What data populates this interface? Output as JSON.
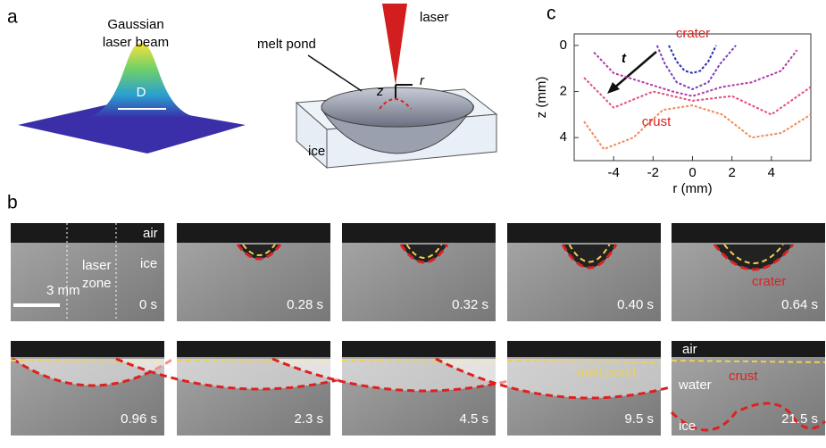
{
  "panel_letters": {
    "a": "a",
    "b": "b",
    "c": "c"
  },
  "panel_a": {
    "beam_title": [
      "Gaussian",
      "laser beam"
    ],
    "diameter": "D",
    "melt_pond": "melt pond",
    "laser": "laser",
    "z": "z",
    "r": "r",
    "ice": "ice"
  },
  "panel_b": {
    "frames": [
      {
        "time": "0 s",
        "labels": [
          "air",
          "laser",
          "zone",
          "ice",
          "3 mm"
        ]
      },
      {
        "time": "0.28 s",
        "labels": []
      },
      {
        "time": "0.32 s",
        "labels": []
      },
      {
        "time": "0.40 s",
        "labels": []
      },
      {
        "time": "0.64 s",
        "labels": [
          "crater"
        ]
      },
      {
        "time": "0.96 s",
        "labels": []
      },
      {
        "time": "2.3 s",
        "labels": []
      },
      {
        "time": "4.5 s",
        "labels": []
      },
      {
        "time": "9.5 s",
        "labels": [
          "melt pond"
        ]
      },
      {
        "time": "21.5 s",
        "labels": [
          "air",
          "water",
          "crust",
          "ice"
        ]
      }
    ]
  },
  "panel_c": {
    "type": "line",
    "xlabel": "r (mm)",
    "ylabel": "z (mm)",
    "xlim": [
      -6,
      6
    ],
    "ylim": [
      -0.5,
      5
    ],
    "xticks": [
      -4,
      -2,
      0,
      2,
      4
    ],
    "yticks": [
      0,
      2,
      4
    ],
    "annotations": {
      "crater": "crater",
      "crust": "crust",
      "t": "t"
    },
    "series": [
      {
        "color": "#2b2bb0",
        "x": [
          -1.2,
          -0.8,
          -0.4,
          0,
          0.4,
          0.8,
          1.2
        ],
        "values": [
          0,
          0.7,
          1.1,
          1.2,
          1.1,
          0.7,
          0
        ]
      },
      {
        "color": "#7a3cc0",
        "x": [
          -1.8,
          -1.4,
          -0.8,
          0,
          0.8,
          1.4,
          2.2
        ],
        "values": [
          0,
          0.8,
          1.6,
          1.9,
          1.6,
          0.8,
          0
        ]
      },
      {
        "color": "#b03aa8",
        "x": [
          -5,
          -4,
          -2.5,
          -1,
          0,
          1.5,
          3,
          4.5,
          5.3
        ],
        "values": [
          0.3,
          1.2,
          1.6,
          2,
          2.2,
          1.8,
          1.6,
          1.1,
          0.2
        ]
      },
      {
        "color": "#e0507a",
        "x": [
          -5.5,
          -4,
          -2,
          0,
          2,
          4,
          6
        ],
        "values": [
          1.4,
          2.7,
          2,
          2.4,
          2.2,
          3,
          1.8
        ]
      },
      {
        "color": "#f08a5a",
        "x": [
          -5.5,
          -4.5,
          -3,
          -1.5,
          0,
          1.5,
          3,
          4.5,
          6
        ],
        "values": [
          3.3,
          4.5,
          4,
          2.8,
          2.6,
          3,
          4,
          3.8,
          3
        ]
      }
    ]
  }
}
